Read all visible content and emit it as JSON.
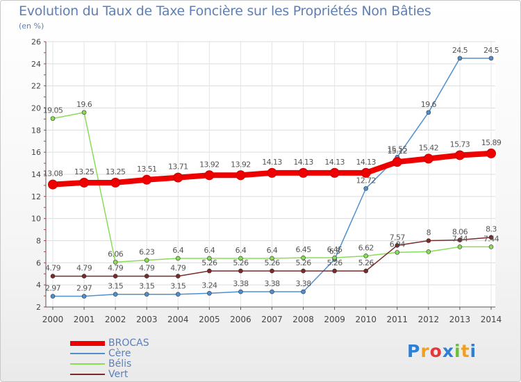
{
  "chart_data": {
    "type": "line",
    "title": "Evolution du Taux de Taxe Foncière sur les Propriétés Non Bâties",
    "ylabel": "(en %)",
    "xlabel": "",
    "ylim": [
      2,
      26
    ],
    "y_ticks": [
      2,
      4,
      6,
      8,
      10,
      12,
      14,
      16,
      18,
      20,
      22,
      24,
      26
    ],
    "categories": [
      "2000",
      "2001",
      "2002",
      "2003",
      "2004",
      "2005",
      "2006",
      "2007",
      "2008",
      "2009",
      "2010",
      "2011",
      "2012",
      "2013",
      "2014"
    ],
    "series": [
      {
        "name": "BROCAS",
        "color": "#ee0000",
        "values": [
          13.08,
          13.25,
          13.25,
          13.51,
          13.71,
          13.92,
          13.92,
          14.13,
          14.13,
          14.13,
          14.13,
          15.12,
          15.42,
          15.73,
          15.89
        ],
        "labels": [
          "13.08",
          "13.25",
          "13.25",
          "13.51",
          "13.71",
          "13.92",
          "13.92",
          "14.13",
          "14.13",
          "14.13",
          "14.13",
          "15.12",
          "15.42",
          "15.73",
          "15.89"
        ]
      },
      {
        "name": "Cère",
        "color": "#4f8fcf",
        "values": [
          2.97,
          2.97,
          3.15,
          3.15,
          3.15,
          3.24,
          3.38,
          3.38,
          3.38,
          6.3,
          12.72,
          15.55,
          19.6,
          24.5,
          24.5
        ],
        "labels": [
          "2.97",
          "2.97",
          "3.15",
          "3.15",
          "3.15",
          "3.24",
          "3.38",
          "3.38",
          "3.38",
          "6.3",
          "12.72",
          "15.55",
          "19.6",
          "24.5",
          "24.5"
        ]
      },
      {
        "name": "Bélis",
        "color": "#88dd55",
        "values": [
          19.05,
          19.6,
          6.06,
          6.23,
          6.4,
          6.4,
          6.4,
          6.4,
          6.45,
          6.45,
          6.62,
          6.94,
          7.0,
          7.44,
          7.44
        ],
        "labels": [
          "19.05",
          "19.6",
          "6.06",
          "6.23",
          "6.4",
          "6.4",
          "6.4",
          "6.4",
          "6.45",
          "6.45",
          "6.62",
          "6.94",
          "",
          "7.44",
          "7.44"
        ]
      },
      {
        "name": "Vert",
        "color": "#7a2a2a",
        "values": [
          4.79,
          4.79,
          4.79,
          4.79,
          4.79,
          5.26,
          5.26,
          5.26,
          5.26,
          5.26,
          5.26,
          7.57,
          8.0,
          8.06,
          8.3
        ],
        "labels": [
          "4.79",
          "4.79",
          "4.79",
          "4.79",
          "4.79",
          "5.26",
          "5.26",
          "5.26",
          "5.26",
          "5.26",
          "5.26",
          "7.57",
          "8",
          "8.06",
          "8.3"
        ]
      }
    ]
  },
  "logo": {
    "text": "Proxiti",
    "letters": [
      "P",
      "r",
      "o",
      "x",
      "i",
      "t",
      "i"
    ],
    "colors": [
      "#2f7fd4",
      "#f0a020",
      "#e03a3a",
      "#2f7fd4",
      "#6bbd3c",
      "#f0a020",
      "#2f7fd4"
    ]
  }
}
